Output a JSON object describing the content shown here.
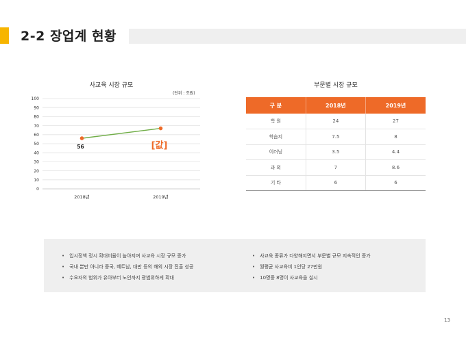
{
  "header": {
    "title": "2-2 장업계 현황",
    "accent_color": "#f7b500"
  },
  "chart_data": {
    "type": "line",
    "title": "사교육 시장 규모",
    "unit": "(단위 : 조원)",
    "categories": [
      "2018년",
      "2019년"
    ],
    "series": [
      {
        "values": [
          56,
          67
        ],
        "color": "#70ad47"
      }
    ],
    "point_color": "#ee6a28",
    "data_labels": [
      "56",
      "[값]"
    ],
    "yticks": [
      "0",
      "10",
      "20",
      "30",
      "40",
      "50",
      "60",
      "70",
      "80",
      "90",
      "100"
    ],
    "ylim": [
      0,
      100
    ],
    "grid": true
  },
  "table": {
    "title": "부문별 시장 규모",
    "header_color": "#ee6a28",
    "headers": [
      "구  분",
      "2018년",
      "2019년"
    ],
    "rows": [
      [
        "학  원",
        "24",
        "27"
      ],
      [
        "학습지",
        "7.5",
        "8"
      ],
      [
        "이러닝",
        "3.5",
        "4.4"
      ],
      [
        "과  외",
        "7",
        "8.6"
      ],
      [
        "기  타",
        "6",
        "6"
      ]
    ]
  },
  "summary": {
    "left": [
      "입시정책 정시 확대비율이 높아지며 사교육 시장 규모 증가",
      "국내 뿐만 아니라 중국, 베트남, 대만 등의 해외 시장 진출 성공",
      "수요자의 범위가 유아부터 노인까지 광범위하게 확대"
    ],
    "right": [
      "사교육 종류가 다양해지면서 부문별 규모 지속적인 증가",
      "월평균 사교육비 1인당 27만원",
      "10명중 8명이 사교육을 실시"
    ]
  },
  "page_number": "13"
}
